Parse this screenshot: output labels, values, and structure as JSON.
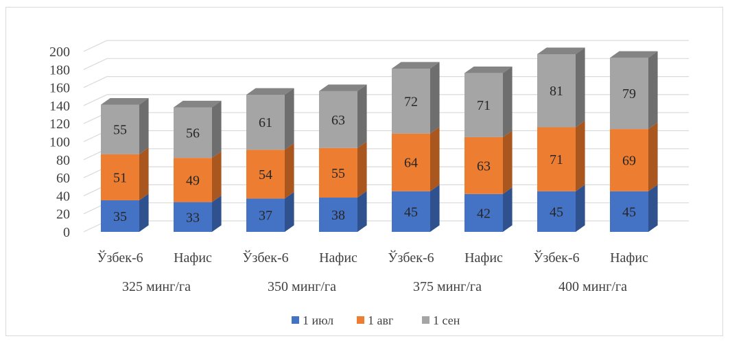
{
  "chart_data": {
    "type": "bar",
    "stacked": true,
    "three_d": true,
    "categories": [
      "Ўзбек-6",
      "Нафис",
      "Ўзбек-6",
      "Нафис",
      "Ўзбек-6",
      "Нафис",
      "Ўзбек-6",
      "Нафис"
    ],
    "groups": [
      "325 минг/га",
      "350 минг/га",
      "375 минг/га",
      "400 минг/га"
    ],
    "series": [
      {
        "name": "1 июл",
        "color": "#4472c4",
        "side": "#2f528f",
        "top": "#5b87d6",
        "values": [
          35,
          33,
          37,
          38,
          45,
          42,
          45,
          45
        ]
      },
      {
        "name": "1 авг",
        "color": "#ed7d31",
        "side": "#a9561f",
        "top": "#f29a5c",
        "values": [
          51,
          49,
          54,
          55,
          64,
          63,
          71,
          69
        ]
      },
      {
        "name": "1 сен",
        "color": "#a5a5a5",
        "side": "#6e6e6e",
        "top": "#bdbdbd",
        "values": [
          55,
          56,
          61,
          63,
          72,
          71,
          81,
          79
        ]
      }
    ],
    "yticks": [
      0,
      20,
      40,
      60,
      80,
      100,
      120,
      140,
      160,
      180,
      200
    ],
    "ylim": [
      0,
      200
    ],
    "grid": true,
    "legend": "bottom",
    "title": "",
    "xlabel": "",
    "ylabel": ""
  }
}
